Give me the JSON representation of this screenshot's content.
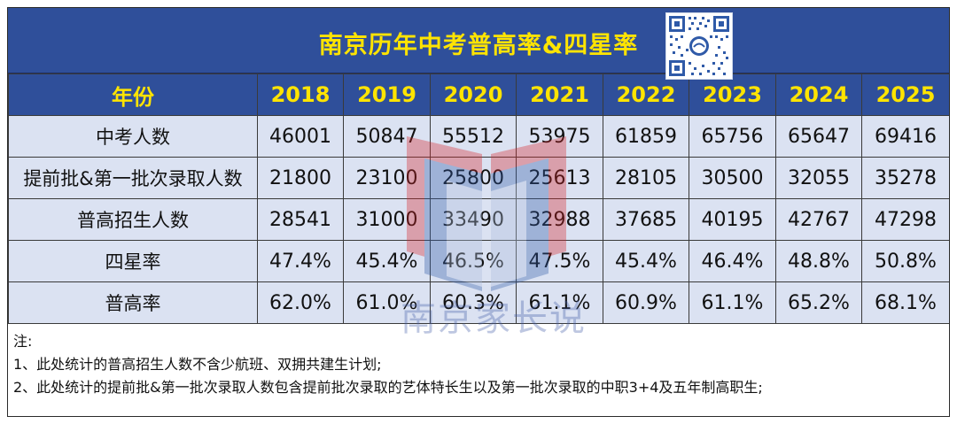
{
  "title": "南京历年中考普高率&四星率",
  "header": {
    "label": "年份",
    "years": [
      "2018",
      "2019",
      "2020",
      "2021",
      "2022",
      "2023",
      "2024",
      "2025"
    ]
  },
  "rows": [
    {
      "label": "中考人数",
      "values": [
        "46001",
        "50847",
        "55512",
        "53975",
        "61859",
        "65756",
        "65647",
        "69416"
      ]
    },
    {
      "label": "提前批&第一批次录取人数",
      "values": [
        "21800",
        "23100",
        "25800",
        "25613",
        "28105",
        "30500",
        "32055",
        "35278"
      ]
    },
    {
      "label": "普高招生人数",
      "values": [
        "28541",
        "31000",
        "33490",
        "32988",
        "37685",
        "40195",
        "42767",
        "47298"
      ]
    },
    {
      "label": "四星率",
      "values": [
        "47.4%",
        "45.4%",
        "46.5%",
        "47.5%",
        "45.4%",
        "46.4%",
        "48.8%",
        "50.8%"
      ]
    },
    {
      "label": "普高率",
      "values": [
        "62.0%",
        "61.0%",
        "60.3%",
        "61.1%",
        "60.9%",
        "61.1%",
        "65.2%",
        "68.1%"
      ]
    }
  ],
  "notes": {
    "title": "注:",
    "lines": [
      "1、此处统计的普高招生人数不含少航班、双拥共建生计划;",
      "2、此处统计的提前批&第一批次录取人数包含提前批次录取的艺体特长生以及第一批次录取的中职3+4及五年制高职生;"
    ]
  },
  "watermark": {
    "text": "南京家长说"
  },
  "icons": {
    "qr": "qr-code-icon",
    "book": "book-logo-icon"
  },
  "colors": {
    "header_bg": "#2f4f9a",
    "header_text": "#ffe400",
    "cell_bg": "#dbe2f2",
    "logo_red": "#d7262a",
    "logo_blue": "#2f5aa8"
  }
}
